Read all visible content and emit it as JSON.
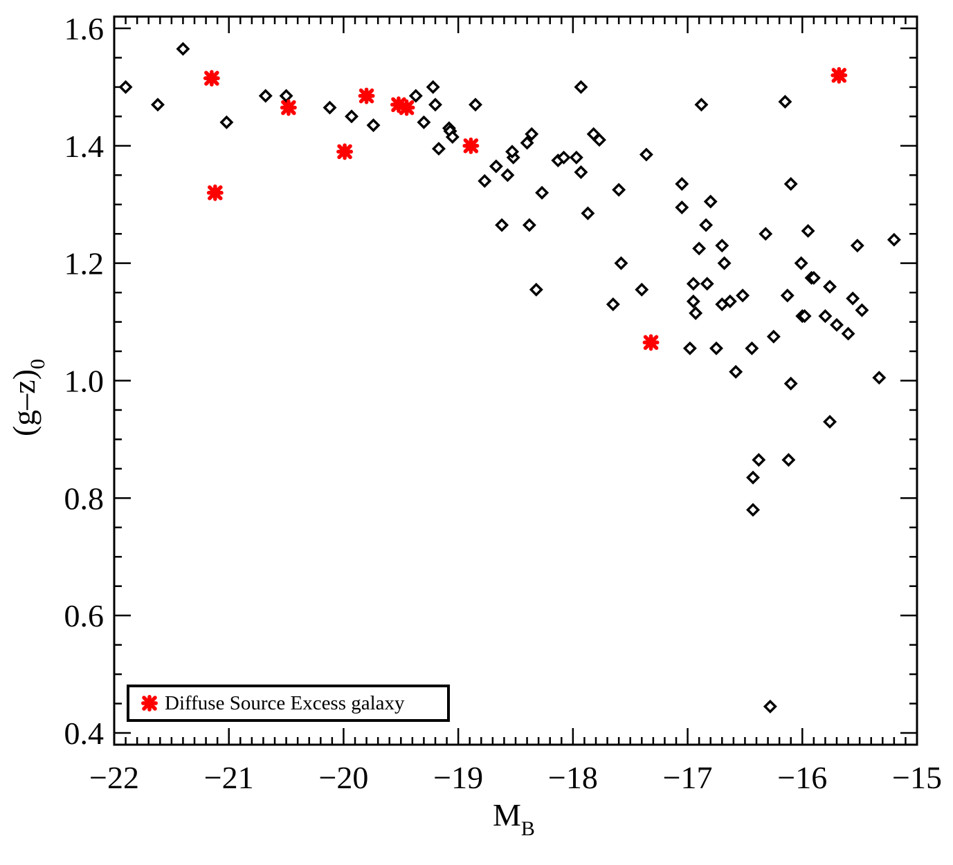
{
  "chart_data": {
    "type": "scatter",
    "title": "",
    "xlabel": "M",
    "xlabel_sub": "B",
    "ylabel": "(g–z)",
    "ylabel_sub": "0",
    "xlim": [
      -22,
      -15
    ],
    "ylim": [
      0.38,
      1.62
    ],
    "x_ticks": [
      -22,
      -21,
      -20,
      -19,
      -18,
      -17,
      -16,
      -15
    ],
    "x_tick_labels": [
      "−22",
      "−21",
      "−20",
      "−19",
      "−18",
      "−17",
      "−16",
      "−15"
    ],
    "y_ticks": [
      0.4,
      0.6,
      0.8,
      1.0,
      1.2,
      1.4,
      1.6
    ],
    "y_tick_labels": [
      "0.4",
      "0.6",
      "0.8",
      "1.0",
      "1.2",
      "1.4",
      "1.6"
    ],
    "grid": false,
    "legend_position": "bottom-left",
    "series": [
      {
        "marker": "open-diamond",
        "color": "#000000",
        "points": [
          [
            -21.9,
            1.5
          ],
          [
            -21.62,
            1.47
          ],
          [
            -21.4,
            1.565
          ],
          [
            -21.15,
            1.515
          ],
          [
            -21.02,
            1.44
          ],
          [
            -20.68,
            1.485
          ],
          [
            -20.5,
            1.485
          ],
          [
            -20.12,
            1.465
          ],
          [
            -19.93,
            1.45
          ],
          [
            -19.74,
            1.435
          ],
          [
            -19.37,
            1.485
          ],
          [
            -19.22,
            1.5
          ],
          [
            -19.2,
            1.47
          ],
          [
            -19.3,
            1.44
          ],
          [
            -19.17,
            1.395
          ],
          [
            -19.08,
            1.43
          ],
          [
            -19.07,
            1.425
          ],
          [
            -19.05,
            1.415
          ],
          [
            -18.85,
            1.47
          ],
          [
            -18.77,
            1.34
          ],
          [
            -18.67,
            1.365
          ],
          [
            -18.62,
            1.265
          ],
          [
            -18.57,
            1.35
          ],
          [
            -18.52,
            1.38
          ],
          [
            -18.53,
            1.39
          ],
          [
            -18.4,
            1.405
          ],
          [
            -18.36,
            1.42
          ],
          [
            -18.38,
            1.265
          ],
          [
            -18.32,
            1.155
          ],
          [
            -18.27,
            1.32
          ],
          [
            -18.13,
            1.375
          ],
          [
            -18.08,
            1.38
          ],
          [
            -17.97,
            1.38
          ],
          [
            -17.93,
            1.355
          ],
          [
            -17.93,
            1.5
          ],
          [
            -17.87,
            1.285
          ],
          [
            -17.82,
            1.42
          ],
          [
            -17.77,
            1.41
          ],
          [
            -17.65,
            1.13
          ],
          [
            -17.6,
            1.325
          ],
          [
            -17.58,
            1.2
          ],
          [
            -17.4,
            1.155
          ],
          [
            -17.36,
            1.385
          ],
          [
            -17.05,
            1.335
          ],
          [
            -17.05,
            1.295
          ],
          [
            -16.98,
            1.055
          ],
          [
            -16.95,
            1.165
          ],
          [
            -16.95,
            1.135
          ],
          [
            -16.93,
            1.115
          ],
          [
            -16.9,
            1.225
          ],
          [
            -16.88,
            1.47
          ],
          [
            -16.83,
            1.165
          ],
          [
            -16.84,
            1.265
          ],
          [
            -16.8,
            1.305
          ],
          [
            -16.75,
            1.055
          ],
          [
            -16.7,
            1.13
          ],
          [
            -16.7,
            1.23
          ],
          [
            -16.68,
            1.2
          ],
          [
            -16.63,
            1.135
          ],
          [
            -16.58,
            1.015
          ],
          [
            -16.52,
            1.145
          ],
          [
            -16.44,
            1.055
          ],
          [
            -16.43,
            0.835
          ],
          [
            -16.43,
            0.78
          ],
          [
            -16.38,
            0.865
          ],
          [
            -16.32,
            1.25
          ],
          [
            -16.28,
            0.445
          ],
          [
            -16.25,
            1.075
          ],
          [
            -16.15,
            1.475
          ],
          [
            -16.13,
            1.145
          ],
          [
            -16.12,
            0.865
          ],
          [
            -16.1,
            0.995
          ],
          [
            -16.1,
            1.335
          ],
          [
            -16.01,
            1.2
          ],
          [
            -16.0,
            1.11
          ],
          [
            -15.98,
            1.11
          ],
          [
            -15.95,
            1.255
          ],
          [
            -15.92,
            1.175
          ],
          [
            -15.9,
            1.175
          ],
          [
            -15.8,
            1.11
          ],
          [
            -15.76,
            1.16
          ],
          [
            -15.76,
            0.93
          ],
          [
            -15.7,
            1.095
          ],
          [
            -15.6,
            1.08
          ],
          [
            -15.56,
            1.14
          ],
          [
            -15.52,
            1.23
          ],
          [
            -15.48,
            1.12
          ],
          [
            -15.33,
            1.005
          ],
          [
            -15.2,
            1.24
          ],
          [
            -21.15,
            1.515
          ],
          [
            -21.12,
            1.32
          ],
          [
            -20.48,
            1.465
          ],
          [
            -19.99,
            1.39
          ],
          [
            -19.8,
            1.485
          ],
          [
            -19.52,
            1.47
          ],
          [
            -19.45,
            1.465
          ],
          [
            -18.89,
            1.4
          ],
          [
            -17.32,
            1.065
          ],
          [
            -15.68,
            1.52
          ]
        ]
      },
      {
        "name": "Diffuse Source Excess galaxy",
        "marker": "x-star",
        "color": "#ff0000",
        "points": [
          [
            -21.15,
            1.515
          ],
          [
            -21.12,
            1.32
          ],
          [
            -20.48,
            1.465
          ],
          [
            -19.99,
            1.39
          ],
          [
            -19.8,
            1.485
          ],
          [
            -19.52,
            1.47
          ],
          [
            -19.45,
            1.465
          ],
          [
            -18.89,
            1.4
          ],
          [
            -17.32,
            1.065
          ],
          [
            -15.68,
            1.52
          ]
        ]
      }
    ],
    "legend": [
      {
        "label": "Diffuse Source Excess galaxy",
        "marker": "x-star",
        "color": "#ff0000"
      }
    ]
  }
}
